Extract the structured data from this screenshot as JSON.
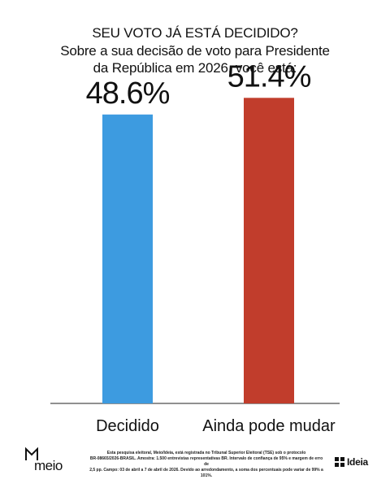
{
  "chart_data": {
    "type": "bar",
    "title": "SEU VOTO JÁ ESTÁ DECIDIDO?",
    "subtitle_lines": [
      "Sobre a sua decisão de voto para Presidente",
      "da República em 2026, você está:"
    ],
    "categories": [
      "Decidido",
      "Ainda pode mudar"
    ],
    "values": [
      48.6,
      51.4
    ],
    "value_labels": [
      "48.6%",
      "51.4%"
    ],
    "colors": [
      "#3d9be0",
      "#c13d2c"
    ],
    "ylim": [
      0,
      55
    ],
    "grid": false
  },
  "footer": {
    "lines": [
      "Esta pesquisa eleitoral, Meio/Ideia, está registrada no Tribunal Superior Eleitoral (TSE) sob o protocolo",
      "BR-08665/2026-BRASIL. Amostra: 1.500 entrevistas representativas BR. Intervalo de confiança de 95% e margem de erro de",
      "2,5 pp. Campo: 03 de abril a 7 de abril de 2026. Devido ao arredondamento, a soma dos percentuais pode variar de 99% a 101%."
    ]
  },
  "logos": {
    "left_text": "meio",
    "right_text": "Ideia"
  }
}
